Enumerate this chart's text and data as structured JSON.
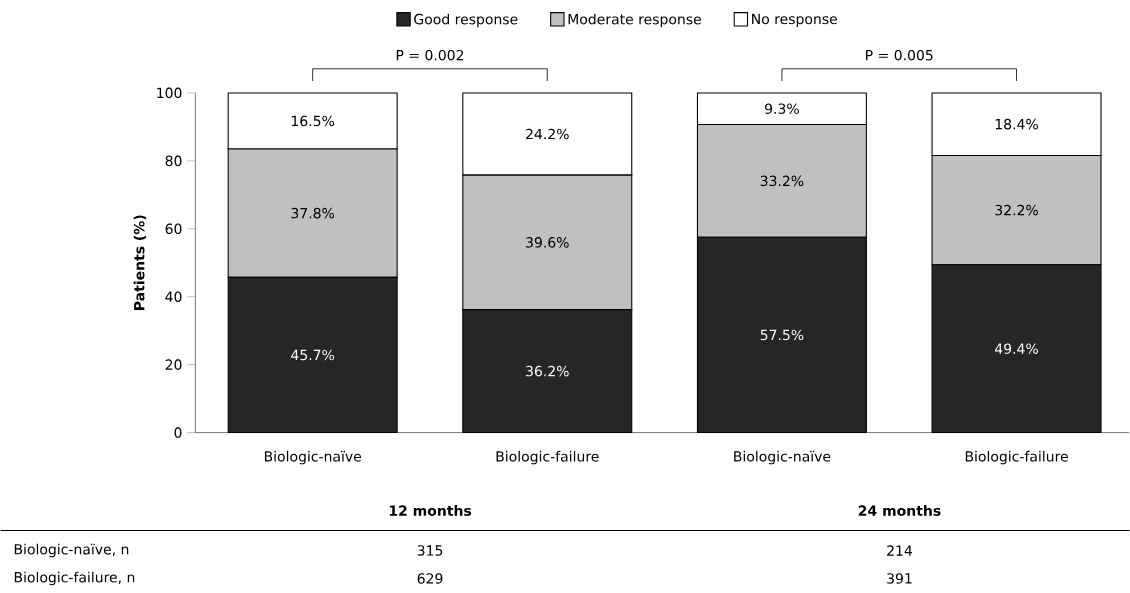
{
  "chart_data": {
    "type": "bar",
    "stacked": true,
    "ylabel": "Patients (%)",
    "categories": [
      "Biologic-naïve",
      "Biologic-failure",
      "Biologic-naïve",
      "Biologic-failure"
    ],
    "series": [
      {
        "name": "Good response",
        "color": "#262626",
        "values": [
          45.7,
          36.2,
          57.5,
          49.4
        ],
        "value_labels": [
          "45.7%",
          "36.2%",
          "57.5%",
          "49.4%"
        ]
      },
      {
        "name": "Moderate response",
        "color": "#c0c0c0",
        "values": [
          37.8,
          39.6,
          33.2,
          32.2
        ],
        "value_labels": [
          "37.8%",
          "39.6%",
          "33.2%",
          "32.2%"
        ]
      },
      {
        "name": "No response",
        "color": "#ffffff",
        "values": [
          16.5,
          24.2,
          9.3,
          18.4
        ],
        "value_labels": [
          "16.5%",
          "24.2%",
          "9.3%",
          "18.4%"
        ]
      }
    ],
    "ylim": [
      0,
      100
    ],
    "yticks": [
      0,
      20,
      40,
      60,
      80,
      100
    ],
    "legend": "top",
    "annotations": [
      "P = 0.002",
      "P = 0.005",
      "12 months",
      "24 months",
      "Biologic-naïve, n",
      "315",
      "214",
      "Biologic-failure, n",
      "629",
      "391"
    ]
  }
}
